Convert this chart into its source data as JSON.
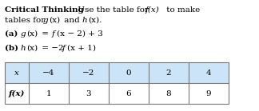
{
  "bg_color": "#ffffff",
  "header_bg": "#cce4f7",
  "table_border": "#777777",
  "font_size": 7.5,
  "table_font_size": 7.5,
  "x_values": [
    "−4",
    "−2",
    "0",
    "2",
    "4"
  ],
  "fx_values": [
    "1",
    "3",
    "6",
    "8",
    "9"
  ],
  "table_x_label": "x",
  "table_fx_label": "f(x)"
}
